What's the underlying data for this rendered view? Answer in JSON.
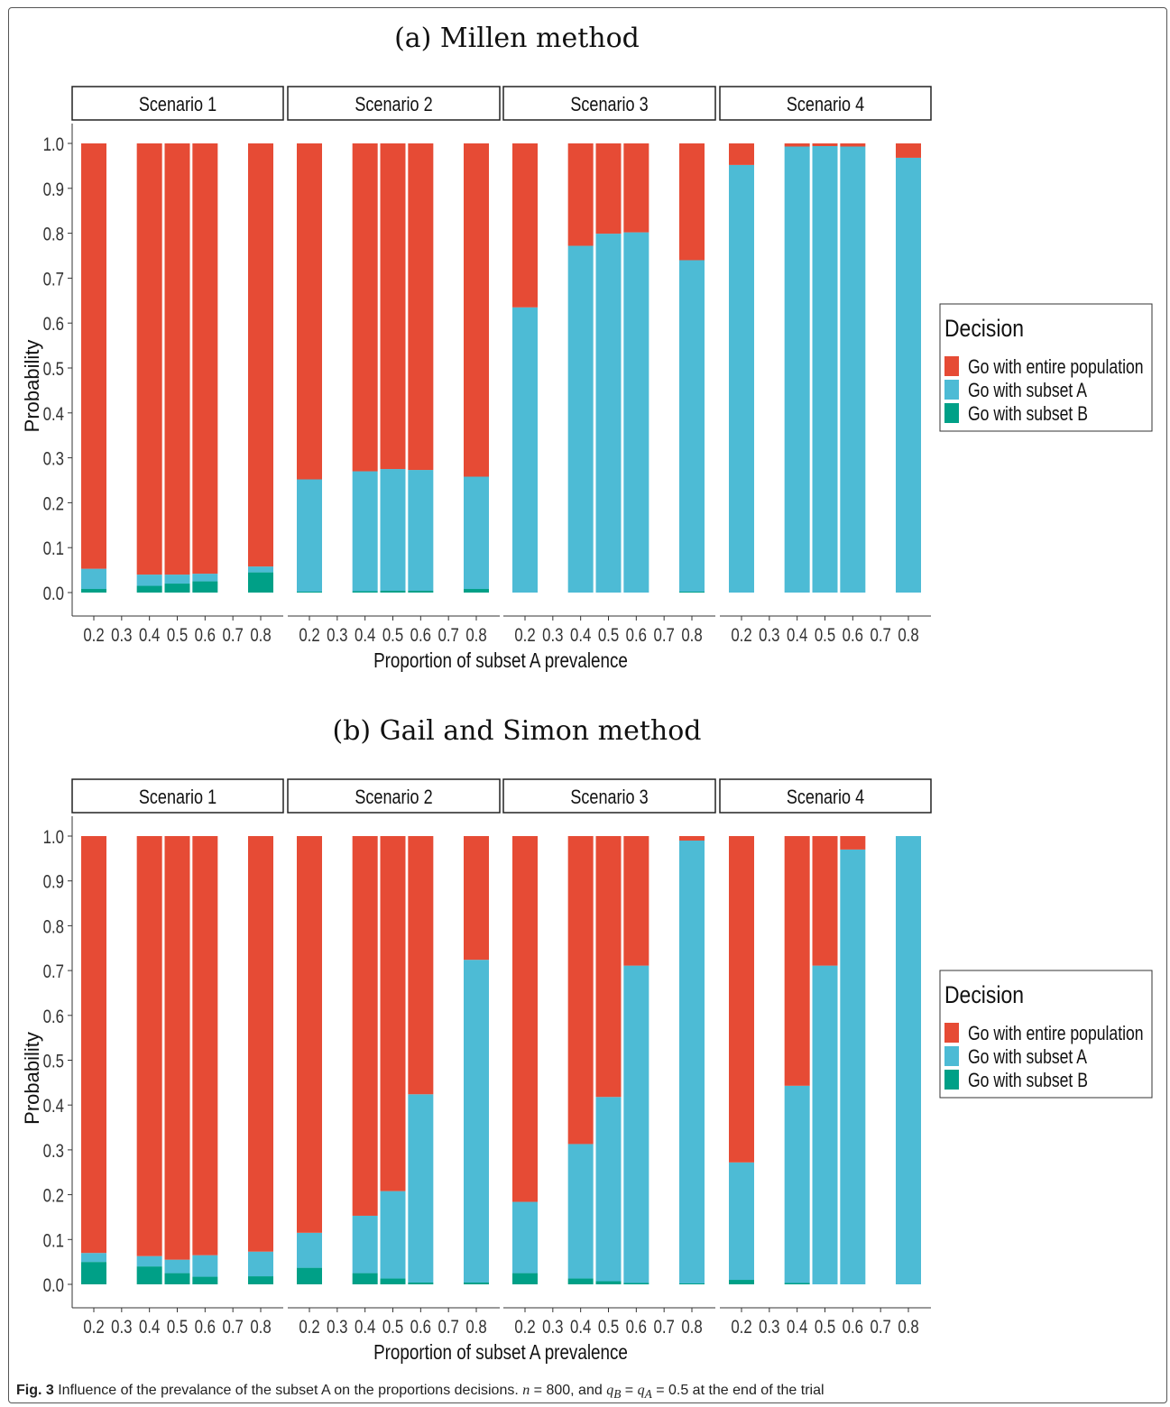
{
  "caption": {
    "label": "Fig. 3",
    "text": " Influence of the prevalance of the subset A on the proportions decisions. ",
    "n_var": "n",
    "n_val": " = 800, and ",
    "qb": "q",
    "qb_sub": "B",
    "eq": " = ",
    "qa": "q",
    "qa_sub": "A",
    "tail": " = 0.5 at the end of the trial"
  },
  "colors": {
    "entire": "#e64b35",
    "subsetA": "#4dbbd5",
    "subsetB": "#00a087"
  },
  "chart_data": [
    {
      "type": "bar",
      "stacked": true,
      "title": "(a) Millen method",
      "xlabel": "Proportion of subset A prevalence",
      "ylabel": "Probability",
      "ylim": [
        0,
        1
      ],
      "yticks": [
        "0.0",
        "0.1",
        "0.2",
        "0.3",
        "0.4",
        "0.5",
        "0.6",
        "0.7",
        "0.8",
        "0.9",
        "1.0"
      ],
      "xticks": [
        "0.2",
        "0.3",
        "0.4",
        "0.5",
        "0.6",
        "0.7",
        "0.8"
      ],
      "legend": {
        "title": "Decision",
        "position": "right",
        "entries": [
          "Go with entire population",
          "Go with subset A",
          "Go with subset B"
        ]
      },
      "facets": [
        {
          "name": "Scenario 1",
          "x": [
            0.2,
            0.4,
            0.5,
            0.6,
            0.8
          ],
          "series": [
            {
              "name": "Go with subset B",
              "values": [
                0.008,
                0.015,
                0.02,
                0.025,
                0.045
              ]
            },
            {
              "name": "Go with subset A",
              "values": [
                0.045,
                0.025,
                0.02,
                0.017,
                0.013
              ]
            },
            {
              "name": "Go with entire population",
              "values": [
                0.947,
                0.96,
                0.96,
                0.958,
                0.942
              ]
            }
          ]
        },
        {
          "name": "Scenario 2",
          "x": [
            0.2,
            0.4,
            0.5,
            0.6,
            0.8
          ],
          "series": [
            {
              "name": "Go with subset B",
              "values": [
                0.002,
                0.003,
                0.004,
                0.004,
                0.008
              ]
            },
            {
              "name": "Go with subset A",
              "values": [
                0.25,
                0.267,
                0.271,
                0.269,
                0.25
              ]
            },
            {
              "name": "Go with entire population",
              "values": [
                0.748,
                0.73,
                0.725,
                0.727,
                0.742
              ]
            }
          ]
        },
        {
          "name": "Scenario 3",
          "x": [
            0.2,
            0.4,
            0.5,
            0.6,
            0.8
          ],
          "series": [
            {
              "name": "Go with subset B",
              "values": [
                0,
                0,
                0,
                0,
                0.002
              ]
            },
            {
              "name": "Go with subset A",
              "values": [
                0.635,
                0.772,
                0.799,
                0.802,
                0.738
              ]
            },
            {
              "name": "Go with entire population",
              "values": [
                0.365,
                0.228,
                0.201,
                0.198,
                0.26
              ]
            }
          ]
        },
        {
          "name": "Scenario 4",
          "x": [
            0.2,
            0.4,
            0.5,
            0.6,
            0.8
          ],
          "series": [
            {
              "name": "Go with subset B",
              "values": [
                0,
                0,
                0,
                0,
                0
              ]
            },
            {
              "name": "Go with subset A",
              "values": [
                0.952,
                0.993,
                0.994,
                0.993,
                0.968
              ]
            },
            {
              "name": "Go with entire population",
              "values": [
                0.048,
                0.007,
                0.006,
                0.007,
                0.032
              ]
            }
          ]
        }
      ]
    },
    {
      "type": "bar",
      "stacked": true,
      "title": "(b) Gail and Simon method",
      "xlabel": "Proportion of subset A prevalence",
      "ylabel": "Probability",
      "ylim": [
        0,
        1
      ],
      "yticks": [
        "0.0",
        "0.1",
        "0.2",
        "0.3",
        "0.4",
        "0.5",
        "0.6",
        "0.7",
        "0.8",
        "0.9",
        "1.0"
      ],
      "xticks": [
        "0.2",
        "0.3",
        "0.4",
        "0.5",
        "0.6",
        "0.7",
        "0.8"
      ],
      "legend": {
        "title": "Decision",
        "position": "right",
        "entries": [
          "Go with entire population",
          "Go with subset A",
          "Go with subset B"
        ]
      },
      "facets": [
        {
          "name": "Scenario 1",
          "x": [
            0.2,
            0.4,
            0.5,
            0.6,
            0.8
          ],
          "series": [
            {
              "name": "Go with subset B",
              "values": [
                0.05,
                0.04,
                0.025,
                0.017,
                0.018
              ]
            },
            {
              "name": "Go with subset A",
              "values": [
                0.02,
                0.023,
                0.03,
                0.048,
                0.055
              ]
            },
            {
              "name": "Go with entire population",
              "values": [
                0.93,
                0.937,
                0.945,
                0.935,
                0.927
              ]
            }
          ]
        },
        {
          "name": "Scenario 2",
          "x": [
            0.2,
            0.4,
            0.5,
            0.6,
            0.8
          ],
          "series": [
            {
              "name": "Go with subset B",
              "values": [
                0.037,
                0.025,
                0.013,
                0.004,
                0.004
              ]
            },
            {
              "name": "Go with subset A",
              "values": [
                0.078,
                0.128,
                0.195,
                0.42,
                0.72
              ]
            },
            {
              "name": "Go with entire population",
              "values": [
                0.885,
                0.847,
                0.792,
                0.576,
                0.276
              ]
            }
          ]
        },
        {
          "name": "Scenario 3",
          "x": [
            0.2,
            0.4,
            0.5,
            0.6,
            0.8
          ],
          "series": [
            {
              "name": "Go with subset B",
              "values": [
                0.025,
                0.013,
                0.007,
                0.003,
                0.002
              ]
            },
            {
              "name": "Go with subset A",
              "values": [
                0.159,
                0.3,
                0.411,
                0.708,
                0.988
              ]
            },
            {
              "name": "Go with entire population",
              "values": [
                0.816,
                0.687,
                0.582,
                0.289,
                0.01
              ]
            }
          ]
        },
        {
          "name": "Scenario 4",
          "x": [
            0.2,
            0.4,
            0.5,
            0.6,
            0.8
          ],
          "series": [
            {
              "name": "Go with subset B",
              "values": [
                0.01,
                0.003,
                0,
                0,
                0
              ]
            },
            {
              "name": "Go with subset A",
              "values": [
                0.262,
                0.44,
                0.711,
                0.97,
                1.0
              ]
            },
            {
              "name": "Go with entire population",
              "values": [
                0.728,
                0.557,
                0.289,
                0.03,
                0
              ]
            }
          ]
        }
      ]
    }
  ]
}
